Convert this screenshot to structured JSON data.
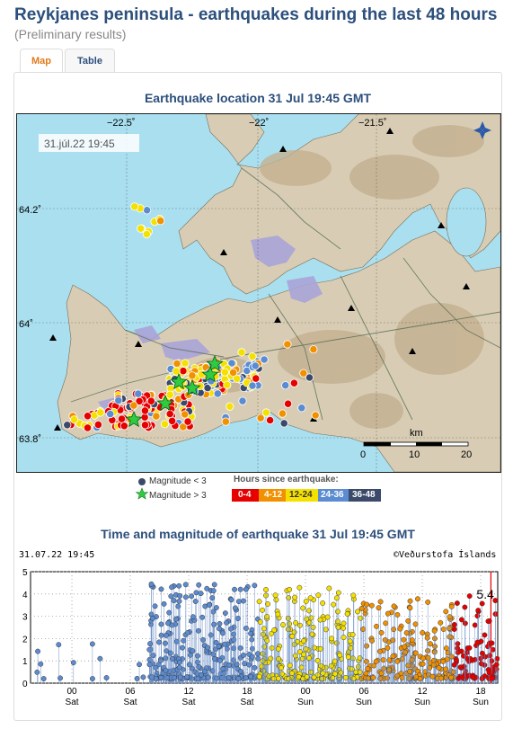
{
  "header": {
    "title": "Reykjanes peninsula - earthquakes during the last 48 hours",
    "subtitle": "(Preliminary results)"
  },
  "tabs": [
    {
      "label": "Map",
      "active": true
    },
    {
      "label": "Table",
      "active": false
    }
  ],
  "map": {
    "title": "Earthquake location   31 Jul 19:45 GMT",
    "timestamp": "31.júl.22  19:45",
    "lon_labels": [
      "−22.5˚",
      "−22˚",
      "−21.5˚"
    ],
    "lat_labels": [
      "64.2˚",
      "64˚",
      "63.8˚"
    ],
    "scale": {
      "unit": "km",
      "ticks": [
        "0",
        "10",
        "20"
      ]
    },
    "colors": {
      "sea": "#a9dfef",
      "land": "#d8cdb4",
      "hills": "#c4b090",
      "ice": "#aaa4d8",
      "roads": "#556b55"
    }
  },
  "legend": {
    "mag_small": "Magnitude < 3",
    "mag_large": "Magnitude > 3",
    "hours_title": "Hours since earthquake:",
    "bins": [
      {
        "label": "0-4",
        "color": "#e60000"
      },
      {
        "label": "4-12",
        "color": "#f29100"
      },
      {
        "label": "12-24",
        "color": "#f5e100"
      },
      {
        "label": "24-36",
        "color": "#5b8bd0"
      },
      {
        "label": "36-48",
        "color": "#3b4a6a"
      }
    ]
  },
  "chart_data": {
    "type": "scatter",
    "title": "Time and magnitude of earthquake   31 Jul 19:45 GMT",
    "timestamp": "31.07.22  19:45",
    "credit": "©Veðurstofa Íslands",
    "ylim": [
      0,
      5
    ],
    "y_ticks": [
      "0",
      "1",
      "2",
      "3",
      "4",
      "5"
    ],
    "x_range_hours": [
      0,
      48
    ],
    "x_ticks": [
      {
        "hour": 4.25,
        "top": "00",
        "bottom": "Sat"
      },
      {
        "hour": 10.25,
        "top": "06",
        "bottom": "Sat"
      },
      {
        "hour": 16.25,
        "top": "12",
        "bottom": "Sat"
      },
      {
        "hour": 22.25,
        "top": "18",
        "bottom": "Sat"
      },
      {
        "hour": 28.25,
        "top": "00",
        "bottom": "Sun"
      },
      {
        "hour": 34.25,
        "top": "06",
        "bottom": "Sun"
      },
      {
        "hour": 40.25,
        "top": "12",
        "bottom": "Sun"
      },
      {
        "hour": 46.25,
        "top": "18",
        "bottom": "Sun"
      }
    ],
    "annotation": {
      "text": "5.4",
      "hour": 47.3,
      "magnitude": 5.4
    },
    "grid": true,
    "series": [
      {
        "name": "36-48",
        "color": "#5b8bd0"
      },
      {
        "name": "24-36",
        "color": "#5b8bd0"
      },
      {
        "name": "12-24",
        "color": "#f5e100"
      },
      {
        "name": "4-12",
        "color": "#f29100"
      },
      {
        "name": "0-4",
        "color": "#e60000"
      }
    ]
  }
}
